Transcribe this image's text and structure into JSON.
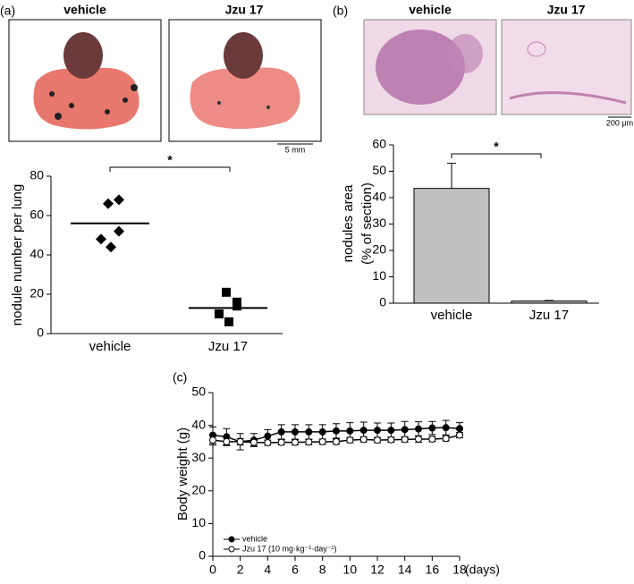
{
  "figure": {
    "panel_labels": [
      "(a)",
      "(b)",
      "(c)"
    ],
    "photo_titles_a": [
      "vehicle",
      "Jzu 17"
    ],
    "scale_bar_a": "5 mm",
    "photo_titles_b": [
      "vehicle",
      "Jzu 17"
    ],
    "scale_bar_b": "200 μm"
  },
  "chart_data": [
    {
      "type": "dot",
      "y_label": "nodule number per lung",
      "categories": [
        "vehicle",
        "Jzu 17"
      ],
      "points": [
        [
          66,
          68,
          52,
          48,
          44
        ],
        [
          21,
          16,
          14,
          10,
          6
        ]
      ],
      "means": [
        56,
        13
      ],
      "markers": [
        "diamond",
        "square"
      ],
      "color": "#000000",
      "ylim": [
        0,
        80
      ],
      "yticks": [
        0,
        20,
        40,
        60,
        80
      ],
      "annotation": "*"
    },
    {
      "type": "bar",
      "y_label": [
        "nodules area",
        "(% of section)"
      ],
      "categories": [
        "vehicle",
        "Jzu 17"
      ],
      "values": [
        43.5,
        0.8
      ],
      "errors": [
        9.5,
        0.2
      ],
      "color": "#c0c0c0",
      "ylim": [
        0,
        60
      ],
      "yticks": [
        0,
        10,
        20,
        30,
        40,
        50,
        60
      ],
      "annotation": "*"
    },
    {
      "type": "line",
      "y_label": "Body weight (g)",
      "x_label": "(days)",
      "x": [
        0,
        1,
        2,
        3,
        4,
        5,
        6,
        7,
        8,
        9,
        10,
        11,
        12,
        13,
        14,
        15,
        16,
        17,
        18
      ],
      "series": [
        {
          "name": "vehicle",
          "color": "#000000",
          "fill": "#000000",
          "values": [
            37,
            36.5,
            35,
            35.5,
            36.7,
            38,
            38,
            38,
            38,
            38.3,
            38.3,
            38.5,
            38.5,
            38.5,
            38.7,
            38.9,
            39.2,
            39.3,
            39
          ],
          "errors": [
            2.5,
            2.5,
            2.5,
            2,
            2,
            2.2,
            2.2,
            2.2,
            2.2,
            2.2,
            2.5,
            2.5,
            2.2,
            2.2,
            2.5,
            2.2,
            2,
            2.2,
            1.8
          ]
        },
        {
          "name": "Jzu 17 (10 mg·kg⁻¹·day⁻¹)",
          "color": "#000000",
          "fill": "#ffffff",
          "values": [
            35.5,
            35,
            35,
            34.8,
            34.7,
            34.8,
            34.8,
            34.9,
            35,
            35,
            35.5,
            35.7,
            35.5,
            35.6,
            35.7,
            35.8,
            35.8,
            36,
            37
          ],
          "errors": [
            1.5,
            1.2,
            1,
            1,
            0.8,
            0.8,
            0.8,
            0.8,
            0.8,
            0.8,
            0.8,
            0.8,
            0.8,
            0.8,
            0.8,
            1,
            0.8,
            0.8,
            0.8
          ]
        }
      ],
      "xlim": [
        0,
        18
      ],
      "xticks": [
        0,
        2,
        4,
        6,
        8,
        10,
        12,
        14,
        16,
        18
      ],
      "ylim": [
        0,
        50
      ],
      "yticks": [
        0,
        10,
        20,
        30,
        40,
        50
      ],
      "legend": "lower left"
    }
  ]
}
